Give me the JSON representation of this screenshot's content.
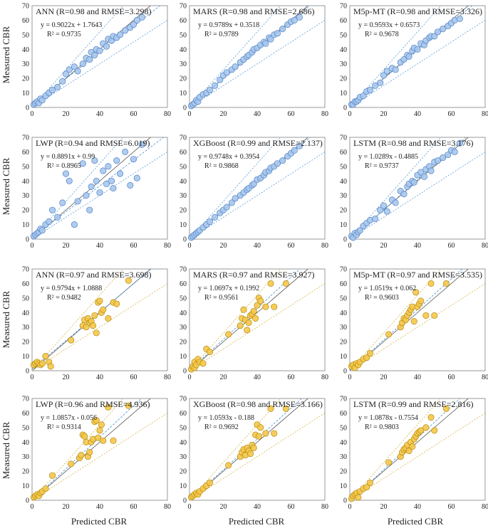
{
  "figure": {
    "ylabel": "Measured CBR",
    "xlabel": "Predicted CBR"
  },
  "colors": {
    "blue_fill": "#a9c8ec",
    "blue_edge": "#4f81c7",
    "blue_trend": "#5b9bd5",
    "gold_fill": "#f5c84a",
    "gold_edge": "#b58a10",
    "gold_band": "#d6b340",
    "gold_trend": "#5b9bd5",
    "identity": "#555555",
    "axis": "#808080"
  },
  "chart_data": [
    {
      "type": "scatter",
      "series": "blue",
      "title": "ANN (R=0.98 and RMSE=3.298)",
      "equation": "y = 0.9022x + 1.7643",
      "r2": "R² = 0.9735",
      "slope": 0.9022,
      "intercept": 1.7643,
      "xlim": [
        0,
        80
      ],
      "ylim": [
        0,
        70
      ],
      "xticks": [
        0,
        20,
        40,
        60,
        80
      ],
      "yticks": [
        0,
        10,
        20,
        30,
        40,
        50,
        60,
        70
      ],
      "x": [
        1,
        2,
        3,
        4,
        5,
        6,
        8,
        10,
        12,
        15,
        18,
        20,
        22,
        25,
        27,
        30,
        32,
        34,
        35,
        37,
        38,
        40,
        42,
        44,
        45,
        47,
        48,
        50,
        52,
        55,
        58,
        60,
        62,
        65
      ],
      "y": [
        2,
        3,
        4,
        3,
        6,
        5,
        8,
        10,
        12,
        14,
        18,
        23,
        26,
        28,
        25,
        30,
        34,
        33,
        38,
        36,
        40,
        39,
        44,
        42,
        47,
        46,
        49,
        48,
        50,
        53,
        55,
        57,
        60,
        62
      ]
    },
    {
      "type": "scatter",
      "series": "blue",
      "title": "MARS (R=0.98 and RMSE=2.686)",
      "equation": "y = 0.9789x + 0.3518",
      "r2": "R² = 0.9789",
      "slope": 0.9789,
      "intercept": 0.3518,
      "xlim": [
        0,
        80
      ],
      "ylim": [
        0,
        70
      ],
      "xticks": [
        0,
        20,
        40,
        60,
        80
      ],
      "yticks": [
        0,
        10,
        20,
        30,
        40,
        50,
        60,
        70
      ],
      "x": [
        1,
        2,
        3,
        4,
        5,
        6,
        8,
        10,
        12,
        15,
        18,
        20,
        22,
        25,
        27,
        30,
        32,
        34,
        35,
        37,
        38,
        40,
        42,
        44,
        45,
        47,
        48,
        50,
        52,
        55,
        58,
        60,
        62,
        65
      ],
      "y": [
        1,
        2,
        3,
        5,
        4,
        7,
        9,
        10,
        12,
        15,
        19,
        22,
        24,
        26,
        28,
        31,
        33,
        35,
        36,
        38,
        40,
        41,
        43,
        45,
        44,
        48,
        47,
        50,
        51,
        54,
        57,
        59,
        60,
        62
      ]
    },
    {
      "type": "scatter",
      "series": "blue",
      "title": "M5p-MT (R=0.98 and RMSE=3.326)",
      "equation": "y = 0.9593x + 0.6573",
      "r2": "R² = 0.9678",
      "slope": 0.9593,
      "intercept": 0.6573,
      "xlim": [
        0,
        80
      ],
      "ylim": [
        0,
        70
      ],
      "xticks": [
        0,
        20,
        40,
        60,
        80
      ],
      "yticks": [
        0,
        10,
        20,
        30,
        40,
        50,
        60,
        70
      ],
      "x": [
        1,
        2,
        3,
        4,
        5,
        6,
        8,
        10,
        12,
        15,
        18,
        20,
        22,
        25,
        27,
        30,
        32,
        34,
        35,
        37,
        38,
        40,
        42,
        44,
        45,
        47,
        48,
        50,
        52,
        55,
        58,
        60,
        62,
        65
      ],
      "y": [
        2,
        2,
        4,
        4,
        5,
        7,
        8,
        11,
        12,
        15,
        17,
        22,
        25,
        27,
        26,
        31,
        33,
        36,
        35,
        39,
        41,
        40,
        44,
        43,
        46,
        48,
        49,
        49,
        52,
        54,
        56,
        58,
        60,
        61
      ]
    },
    {
      "type": "scatter",
      "series": "blue",
      "title": "LWP (R=0.94 and RMSE=6.019)",
      "equation": "y = 0.8891x + 0.99",
      "r2": "R² = 0.8965",
      "slope": 0.8891,
      "intercept": 0.99,
      "xlim": [
        0,
        80
      ],
      "ylim": [
        0,
        70
      ],
      "xticks": [
        0,
        20,
        40,
        60,
        80
      ],
      "yticks": [
        0,
        10,
        20,
        30,
        40,
        50,
        60,
        70
      ],
      "x": [
        1,
        2,
        3,
        4,
        5,
        6,
        8,
        10,
        12,
        15,
        18,
        20,
        22,
        25,
        27,
        30,
        32,
        34,
        35,
        37,
        38,
        40,
        42,
        44,
        45,
        47,
        48,
        50,
        52,
        55,
        58,
        60,
        62,
        65
      ],
      "y": [
        2,
        3,
        4,
        5,
        7,
        6,
        10,
        12,
        20,
        15,
        25,
        45,
        40,
        10,
        26,
        52,
        30,
        20,
        36,
        54,
        40,
        32,
        47,
        38,
        50,
        40,
        35,
        54,
        45,
        60,
        37,
        55,
        42,
        65
      ]
    },
    {
      "type": "scatter",
      "series": "blue",
      "title": "XGBoost (R=0.99 and RMSE=2.137)",
      "equation": "y = 0.9748x + 0.3954",
      "r2": "R² = 0.9868",
      "slope": 0.9748,
      "intercept": 0.3954,
      "xlim": [
        0,
        80
      ],
      "ylim": [
        0,
        70
      ],
      "xticks": [
        0,
        20,
        40,
        60,
        80
      ],
      "yticks": [
        0,
        10,
        20,
        30,
        40,
        50,
        60,
        70
      ],
      "x": [
        1,
        2,
        3,
        4,
        5,
        6,
        8,
        10,
        12,
        15,
        18,
        20,
        22,
        25,
        27,
        30,
        32,
        34,
        35,
        37,
        38,
        40,
        42,
        44,
        45,
        47,
        48,
        50,
        52,
        55,
        58,
        60,
        62,
        65
      ],
      "y": [
        1,
        2,
        3,
        4,
        5,
        6,
        8,
        10,
        12,
        15,
        18,
        20,
        22,
        25,
        28,
        30,
        32,
        34,
        35,
        37,
        38,
        41,
        42,
        44,
        46,
        47,
        49,
        50,
        52,
        54,
        57,
        59,
        61,
        64
      ]
    },
    {
      "type": "scatter",
      "series": "blue",
      "title": "LSTM (R=0.98 and RMSE=3.176)",
      "equation": "y = 1.0289x - 0.4885",
      "r2": "R² = 0.9737",
      "slope": 1.0289,
      "intercept": -0.4885,
      "xlim": [
        0,
        80
      ],
      "ylim": [
        0,
        70
      ],
      "xticks": [
        0,
        20,
        40,
        60,
        80
      ],
      "yticks": [
        0,
        10,
        20,
        30,
        40,
        50,
        60,
        70
      ],
      "x": [
        1,
        2,
        3,
        4,
        5,
        6,
        8,
        10,
        12,
        15,
        18,
        20,
        22,
        25,
        27,
        30,
        32,
        34,
        35,
        37,
        38,
        40,
        42,
        44,
        45,
        47,
        48,
        50,
        52,
        55,
        58,
        60,
        62,
        65
      ],
      "y": [
        2,
        1,
        4,
        3,
        5,
        6,
        9,
        11,
        13,
        14,
        20,
        23,
        19,
        27,
        25,
        33,
        31,
        36,
        38,
        40,
        39,
        44,
        46,
        43,
        48,
        50,
        47,
        53,
        54,
        56,
        58,
        61,
        60,
        66
      ]
    },
    {
      "type": "scatter",
      "series": "gold",
      "title": "ANN (R=0.97 and RMSE=3.698)",
      "equation": "y = 0.9794x + 1.0888",
      "r2": "R² = 0.9482",
      "slope": 0.9794,
      "intercept": 1.0888,
      "xlim": [
        0,
        80
      ],
      "ylim": [
        0,
        70
      ],
      "xticks": [
        0,
        20,
        40,
        60,
        80
      ],
      "yticks": [
        0,
        10,
        20,
        30,
        40,
        50,
        60,
        70
      ],
      "x": [
        1,
        2,
        3,
        4,
        5,
        6,
        8,
        10,
        11,
        23,
        30,
        31,
        32,
        33,
        34,
        35,
        36,
        37,
        38,
        39,
        40,
        41,
        42,
        45,
        48,
        50,
        57
      ],
      "y": [
        4,
        5,
        6,
        5,
        4,
        5,
        10,
        6,
        3,
        21,
        31,
        35,
        30,
        36,
        33,
        34,
        31,
        38,
        26,
        47,
        48,
        40,
        42,
        36,
        47,
        46,
        62
      ]
    },
    {
      "type": "scatter",
      "series": "gold",
      "title": "MARS (R=0.97 and RMSE=3.927)",
      "equation": "y = 1.0697x + 0.1992",
      "r2": "R² = 0.9561",
      "slope": 1.0697,
      "intercept": 0.1992,
      "xlim": [
        0,
        80
      ],
      "ylim": [
        0,
        70
      ],
      "xticks": [
        0,
        20,
        40,
        60,
        80
      ],
      "yticks": [
        0,
        10,
        20,
        30,
        40,
        50,
        60,
        70
      ],
      "x": [
        1,
        2,
        3,
        3,
        4,
        5,
        6,
        8,
        10,
        12,
        23,
        30,
        31,
        32,
        33,
        34,
        35,
        36,
        37,
        38,
        39,
        40,
        41,
        42,
        45,
        48,
        50,
        57
      ],
      "y": [
        1,
        3,
        2,
        6,
        4,
        8,
        6,
        5,
        15,
        13,
        25,
        31,
        36,
        42,
        35,
        28,
        33,
        38,
        39,
        41,
        36,
        45,
        50,
        48,
        44,
        60,
        44,
        60
      ]
    },
    {
      "type": "scatter",
      "series": "gold",
      "title": "M5p-MT (R=0.97 and RMSE=3.535)",
      "equation": "y = 1.0519x + 0.062",
      "r2": "R² = 0.9603",
      "slope": 1.0519,
      "intercept": 0.062,
      "xlim": [
        0,
        80
      ],
      "ylim": [
        0,
        70
      ],
      "xticks": [
        0,
        20,
        40,
        60,
        80
      ],
      "yticks": [
        0,
        10,
        20,
        30,
        40,
        50,
        60,
        70
      ],
      "x": [
        1,
        2,
        3,
        4,
        5,
        6,
        8,
        10,
        12,
        23,
        30,
        31,
        32,
        33,
        34,
        35,
        36,
        37,
        38,
        39,
        40,
        41,
        42,
        45,
        48,
        50,
        57
      ],
      "y": [
        3,
        4,
        2,
        5,
        4,
        6,
        8,
        9,
        12,
        25,
        30,
        33,
        36,
        35,
        38,
        40,
        42,
        44,
        34,
        54,
        44,
        46,
        48,
        38,
        60,
        38,
        60
      ]
    },
    {
      "type": "scatter",
      "series": "gold",
      "title": "LWP (R=0.96 and RMSE=4.936)",
      "equation": "y = 1.0857x - 0.056",
      "r2": "R² = 0.9314",
      "slope": 1.0857,
      "intercept": -0.056,
      "xlim": [
        0,
        80
      ],
      "ylim": [
        0,
        70
      ],
      "xticks": [
        0,
        20,
        40,
        60,
        80
      ],
      "yticks": [
        0,
        10,
        20,
        30,
        40,
        50,
        60,
        70
      ],
      "x": [
        1,
        2,
        3,
        4,
        5,
        6,
        8,
        12,
        23,
        28,
        29,
        30,
        31,
        32,
        33,
        34,
        35,
        36,
        37,
        38,
        39,
        40,
        41,
        42,
        45,
        48,
        57
      ],
      "y": [
        2,
        3,
        4,
        3,
        5,
        6,
        8,
        17,
        25,
        29,
        31,
        45,
        44,
        40,
        30,
        33,
        40,
        42,
        54,
        55,
        43,
        48,
        52,
        41,
        64,
        41,
        65
      ]
    },
    {
      "type": "scatter",
      "series": "gold",
      "title": "XGBoost (R=0.98 and RMSE=3.166)",
      "equation": "y = 1.0593x - 0.188",
      "r2": "R² = 0.9692",
      "slope": 1.0593,
      "intercept": -0.188,
      "xlim": [
        0,
        80
      ],
      "ylim": [
        0,
        70
      ],
      "xticks": [
        0,
        20,
        40,
        60,
        80
      ],
      "yticks": [
        0,
        10,
        20,
        30,
        40,
        50,
        60,
        70
      ],
      "x": [
        1,
        2,
        3,
        4,
        5,
        6,
        8,
        10,
        12,
        23,
        30,
        31,
        32,
        33,
        34,
        35,
        36,
        37,
        38,
        39,
        40,
        41,
        42,
        45,
        48,
        50,
        57
      ],
      "y": [
        2,
        3,
        4,
        5,
        4,
        6,
        8,
        10,
        12,
        24,
        30,
        33,
        35,
        31,
        36,
        34,
        32,
        38,
        36,
        45,
        52,
        44,
        50,
        46,
        63,
        46,
        63
      ]
    },
    {
      "type": "scatter",
      "series": "gold",
      "title": "LSTM (R=0.99 and RMSE=2.816)",
      "equation": "y = 1.0878x - 0.7554",
      "r2": "R² = 0.9803",
      "slope": 1.0878,
      "intercept": -0.7554,
      "xlim": [
        0,
        80
      ],
      "ylim": [
        0,
        70
      ],
      "xticks": [
        0,
        20,
        40,
        60,
        80
      ],
      "yticks": [
        0,
        10,
        20,
        30,
        40,
        50,
        60,
        70
      ],
      "x": [
        1,
        2,
        3,
        4,
        5,
        6,
        8,
        10,
        12,
        23,
        30,
        31,
        32,
        33,
        34,
        35,
        36,
        37,
        38,
        39,
        40,
        41,
        42,
        45,
        48,
        50,
        57
      ],
      "y": [
        1,
        3,
        4,
        5,
        2,
        6,
        8,
        9,
        12,
        26,
        30,
        33,
        35,
        36,
        38,
        34,
        40,
        37,
        42,
        44,
        46,
        47,
        48,
        50,
        57,
        48,
        63
      ]
    }
  ]
}
